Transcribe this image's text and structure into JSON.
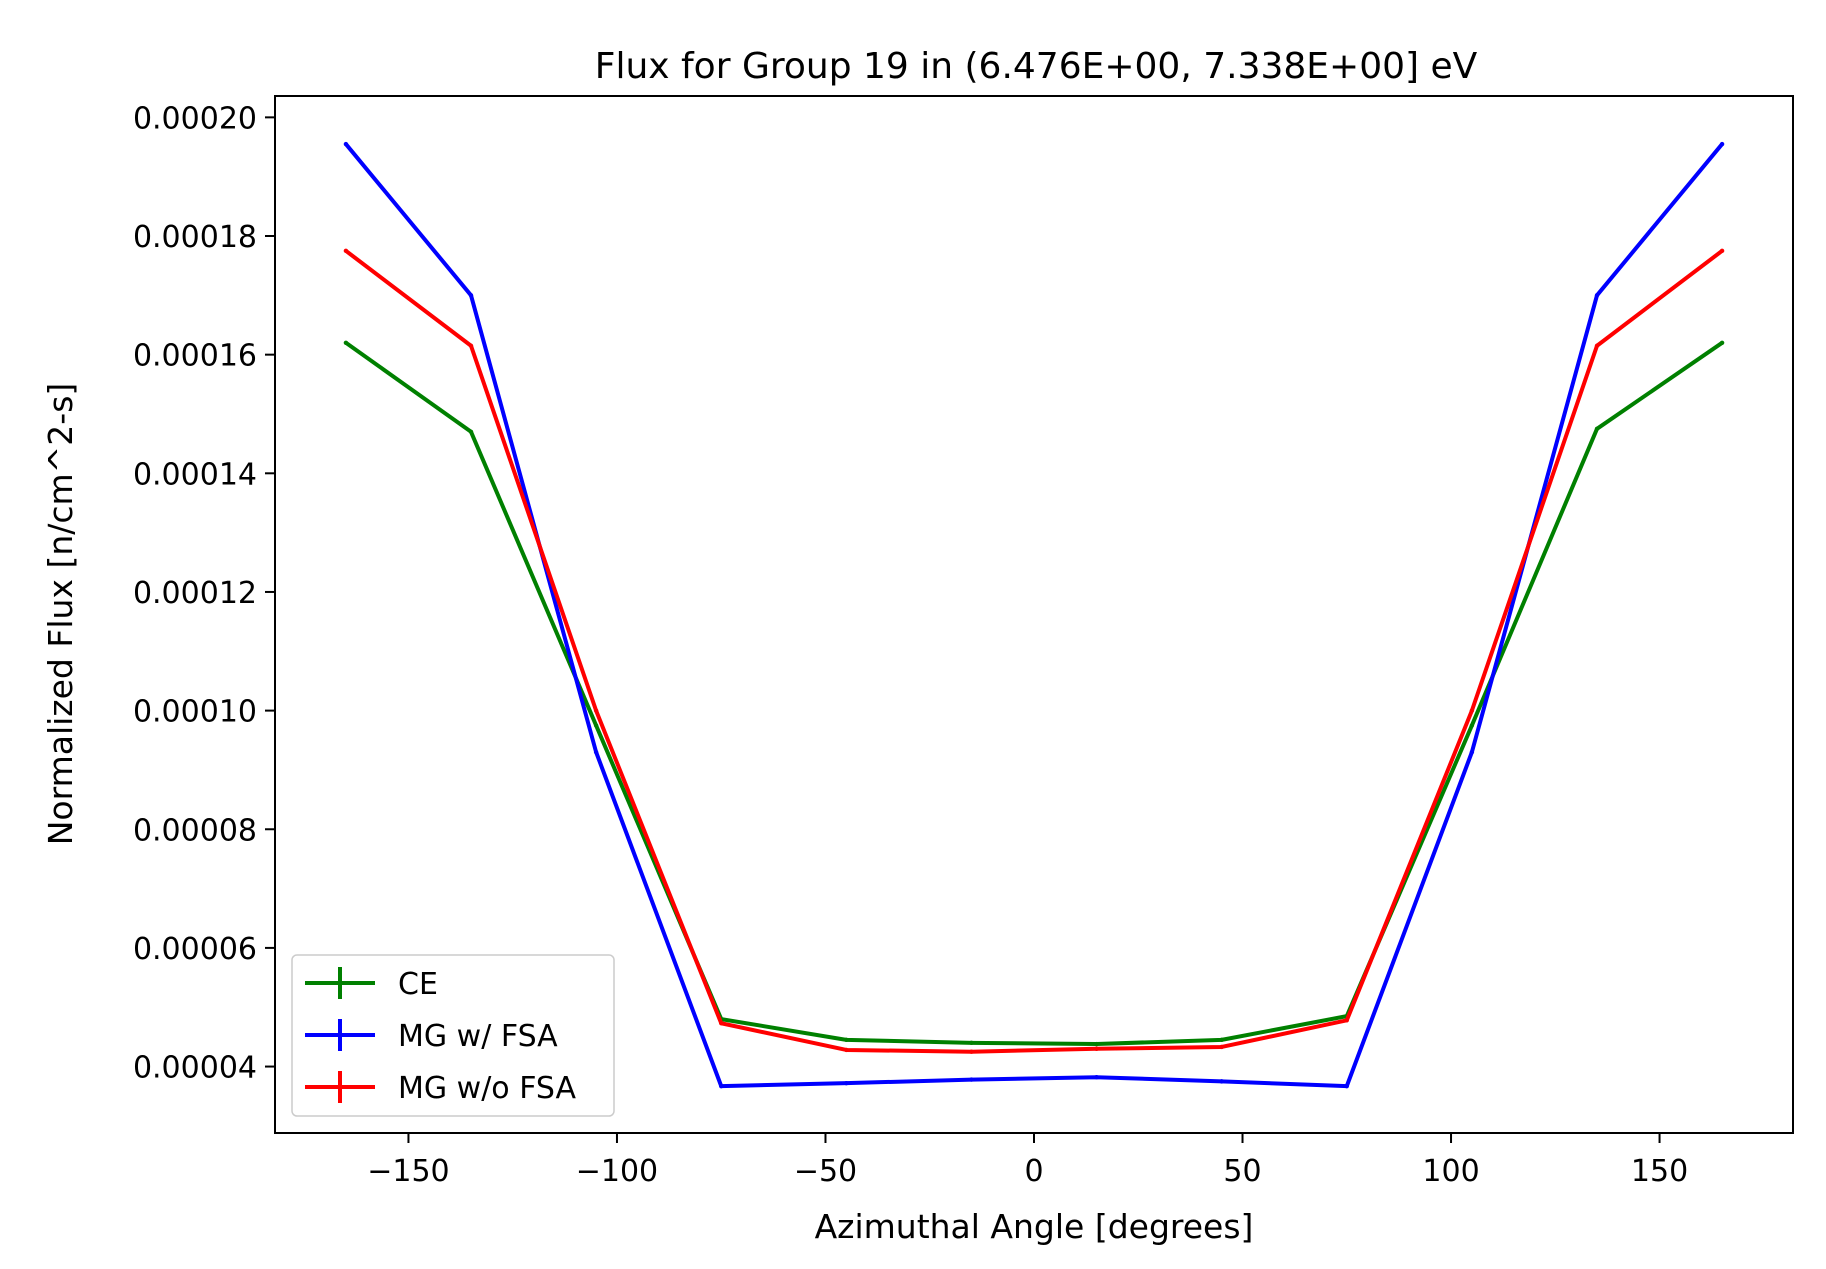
{
  "chart_data": {
    "type": "line",
    "title": "Flux for Group 19 in (6.476E+00, 7.338E+00] eV",
    "xlabel": "Azimuthal Angle [degrees]",
    "ylabel": "Normalized Flux [n/cm^2-s]",
    "xlim": [
      -182,
      182
    ],
    "ylim": [
      2.88e-05,
      0.0002036
    ],
    "xticks": [
      -150,
      -100,
      -50,
      0,
      50,
      100,
      150
    ],
    "xtick_labels": [
      "−150",
      "−100",
      "−50",
      "0",
      "50",
      "100",
      "150"
    ],
    "yticks": [
      4e-05,
      6e-05,
      8e-05,
      0.0001,
      0.00012,
      0.00014,
      0.00016,
      0.00018,
      0.0002
    ],
    "ytick_labels": [
      "0.00004",
      "0.00006",
      "0.00008",
      "0.00010",
      "0.00012",
      "0.00014",
      "0.00016",
      "0.00018",
      "0.00020"
    ],
    "grid": false,
    "legend_position": "lower-left",
    "x": [
      -165,
      -135,
      -105,
      -75,
      -45,
      -15,
      15,
      45,
      75,
      105,
      135,
      165
    ],
    "series": [
      {
        "name": "CE",
        "color": "#008000",
        "values": [
          0.000162,
          0.000147,
          9.75e-05,
          4.8e-05,
          4.45e-05,
          4.4e-05,
          4.38e-05,
          4.45e-05,
          4.85e-05,
          9.75e-05,
          0.0001475,
          0.000162
        ]
      },
      {
        "name": "MG w/ FSA",
        "color": "#0000ff",
        "values": [
          0.0001955,
          0.00017,
          9.3e-05,
          3.67e-05,
          3.72e-05,
          3.78e-05,
          3.82e-05,
          3.75e-05,
          3.67e-05,
          9.3e-05,
          0.00017,
          0.0001955
        ]
      },
      {
        "name": "MG w/o FSA",
        "color": "#ff0000",
        "values": [
          0.0001775,
          0.0001615,
          0.0001,
          4.73e-05,
          4.28e-05,
          4.25e-05,
          4.3e-05,
          4.33e-05,
          4.78e-05,
          0.0001,
          0.0001615,
          0.0001775
        ]
      }
    ]
  }
}
